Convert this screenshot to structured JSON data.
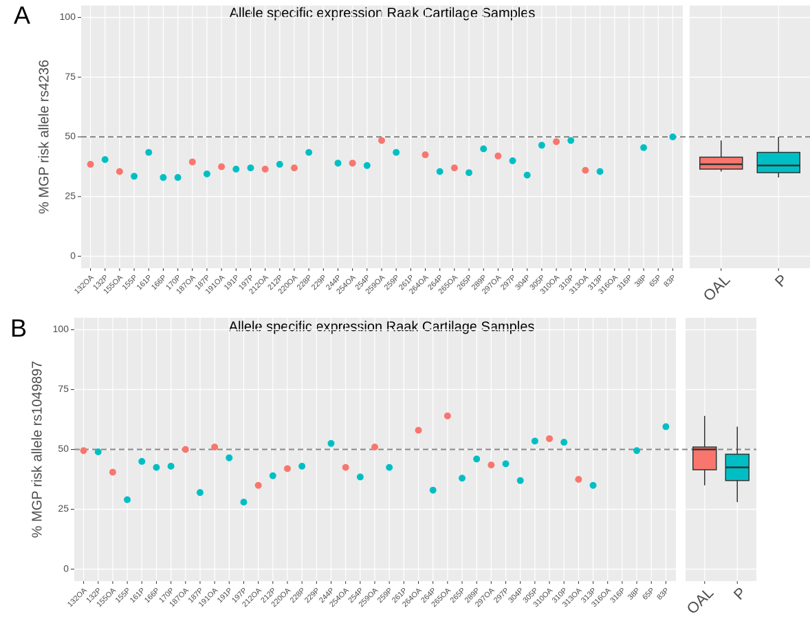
{
  "chart_data": [
    {
      "type": "scatter",
      "panel_label": "A",
      "title": "Allele specific expression Raak Cartilage Samples",
      "y_label": "% MGP risk allele rs4236",
      "categories": [
        "132OA",
        "132P",
        "155OA",
        "155P",
        "161P",
        "166P",
        "170P",
        "187OA",
        "187P",
        "191OA",
        "191P",
        "197P",
        "212OA",
        "212P",
        "220OA",
        "228P",
        "229P",
        "244P",
        "254OA",
        "254P",
        "259OA",
        "259P",
        "261P",
        "264OA",
        "264P",
        "265OA",
        "265P",
        "289P",
        "297OA",
        "297P",
        "304P",
        "305P",
        "310OA",
        "310P",
        "313OA",
        "313P",
        "316OA",
        "316P",
        "38P",
        "65P",
        "83P"
      ],
      "series": [
        {
          "color": "#F8766D",
          "values": [
            38.5,
            null,
            35.5,
            null,
            null,
            null,
            null,
            39.5,
            null,
            37.5,
            null,
            null,
            36.5,
            null,
            37,
            null,
            null,
            null,
            39,
            null,
            48.5,
            null,
            null,
            42.5,
            null,
            37,
            null,
            null,
            42,
            null,
            null,
            null,
            48,
            null,
            36,
            null,
            null,
            null,
            null,
            null,
            null
          ]
        },
        {
          "color": "#00BFC4",
          "values": [
            null,
            40.5,
            null,
            33.5,
            43.5,
            33,
            33,
            null,
            34.5,
            null,
            36.5,
            37,
            null,
            38.5,
            null,
            43.5,
            null,
            39,
            null,
            38,
            null,
            43.5,
            null,
            null,
            35.5,
            null,
            35,
            45,
            null,
            40,
            34,
            46.5,
            null,
            48.5,
            null,
            35.5,
            null,
            null,
            45.5,
            null,
            50
          ]
        }
      ],
      "ylim": [
        -5,
        105
      ],
      "yticks": [
        0,
        25,
        50,
        75,
        100
      ],
      "hline": 50,
      "grid": true,
      "box": {
        "type": "box",
        "categories": [
          "OAL",
          "P"
        ],
        "boxes": [
          {
            "color": "#F8766D",
            "low": 35.5,
            "q1": 36.5,
            "median": 38.5,
            "q3": 41.5,
            "high": 48.5
          },
          {
            "color": "#00BFC4",
            "low": 33,
            "q1": 35,
            "median": 38,
            "q3": 43.5,
            "high": 50
          }
        ]
      }
    },
    {
      "type": "scatter",
      "panel_label": "B",
      "title": "Allele specific expression Raak Cartilage Samples",
      "y_label": "% MGP risk allele rs1049897",
      "categories": [
        "132OA",
        "132P",
        "155OA",
        "155P",
        "161P",
        "166P",
        "170P",
        "187OA",
        "187P",
        "191OA",
        "191P",
        "197P",
        "212OA",
        "212P",
        "220OA",
        "228P",
        "229P",
        "244P",
        "254OA",
        "254P",
        "259OA",
        "259P",
        "261P",
        "264OA",
        "264P",
        "265OA",
        "265P",
        "289P",
        "297OA",
        "297P",
        "304P",
        "305P",
        "310OA",
        "310P",
        "313OA",
        "313P",
        "316OA",
        "316P",
        "38P",
        "65P",
        "83P"
      ],
      "series": [
        {
          "color": "#F8766D",
          "values": [
            49.5,
            null,
            40.5,
            null,
            null,
            null,
            null,
            50,
            null,
            51,
            null,
            null,
            35,
            null,
            42,
            null,
            null,
            null,
            42.5,
            null,
            51,
            null,
            null,
            58,
            null,
            64,
            null,
            null,
            43.5,
            null,
            null,
            null,
            54.5,
            null,
            37.5,
            null,
            null,
            null,
            null,
            null,
            null
          ]
        },
        {
          "color": "#00BFC4",
          "values": [
            null,
            49,
            null,
            29,
            45,
            42.5,
            43,
            null,
            32,
            null,
            46.5,
            28,
            null,
            39,
            null,
            43,
            null,
            52.5,
            null,
            38.5,
            null,
            42.5,
            null,
            null,
            33,
            null,
            38,
            46,
            null,
            44,
            37,
            53.5,
            null,
            53,
            null,
            35,
            null,
            null,
            49.5,
            null,
            59.5
          ]
        }
      ],
      "ylim": [
        -5,
        105
      ],
      "yticks": [
        0,
        25,
        50,
        75,
        100
      ],
      "hline": 50,
      "grid": true,
      "box": {
        "type": "box",
        "categories": [
          "OAL",
          "P"
        ],
        "boxes": [
          {
            "color": "#F8766D",
            "low": 35,
            "q1": 41.5,
            "median": 50,
            "q3": 51,
            "high": 64
          },
          {
            "color": "#00BFC4",
            "low": 28,
            "q1": 37,
            "median": 42.5,
            "q3": 48,
            "high": 59.5
          }
        ]
      }
    }
  ]
}
